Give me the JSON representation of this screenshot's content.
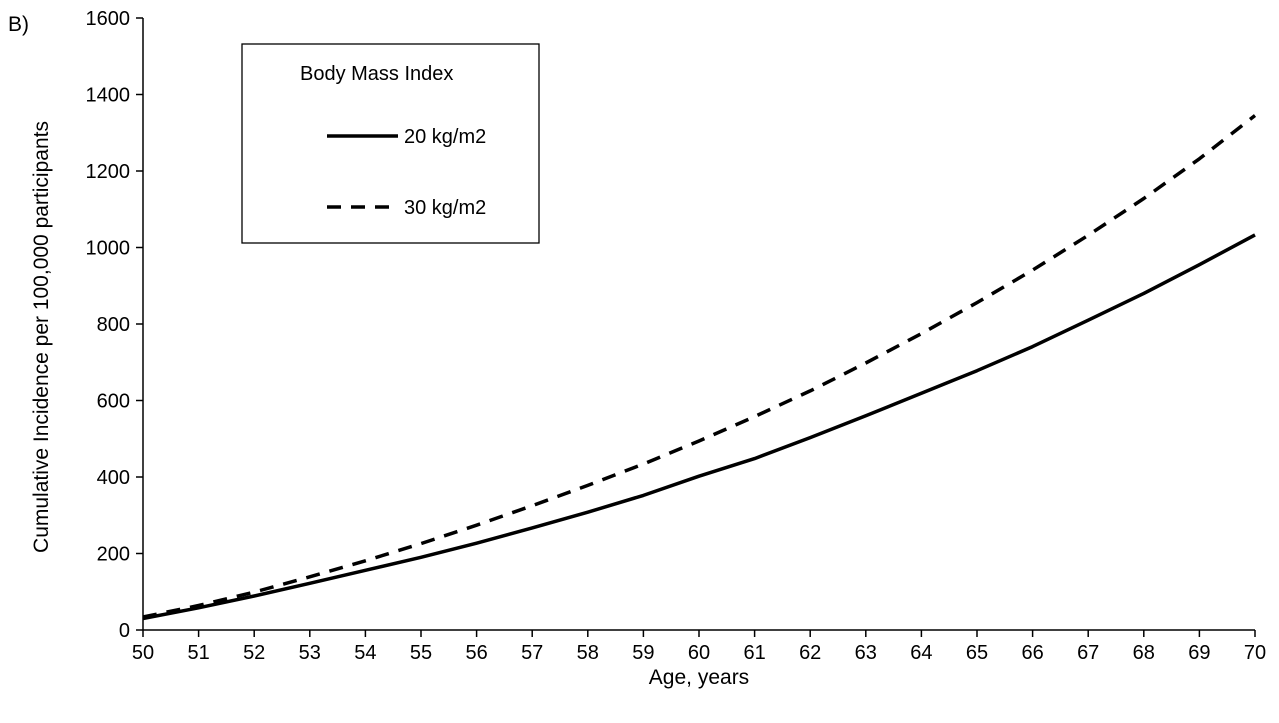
{
  "chart_data": {
    "type": "line",
    "panel_label": "B)",
    "title": "",
    "xlabel": "Age, years",
    "ylabel": "Cumulative Incidence per 100,000 participants",
    "xlim": [
      50,
      70
    ],
    "ylim": [
      0,
      1600
    ],
    "x_ticks": [
      50,
      51,
      52,
      53,
      54,
      55,
      56,
      57,
      58,
      59,
      60,
      61,
      62,
      63,
      64,
      65,
      66,
      67,
      68,
      69,
      70
    ],
    "y_ticks": [
      0,
      200,
      400,
      600,
      800,
      1000,
      1200,
      1400,
      1600
    ],
    "x_tick_labels": [
      "50",
      "51",
      "52",
      "53",
      "54",
      "55",
      "56",
      "57",
      "58",
      "59",
      "60",
      "61",
      "62",
      "63",
      "64",
      "65",
      "66",
      "67",
      "68",
      "69",
      "70"
    ],
    "y_tick_labels": [
      "0",
      "200",
      "400",
      "600",
      "800",
      "1000",
      "1200",
      "1400",
      "1600"
    ],
    "grid": false,
    "legend": {
      "title": "Body Mass Index",
      "placement": "top-left"
    },
    "x": [
      50,
      51,
      52,
      53,
      54,
      55,
      56,
      57,
      58,
      59,
      60,
      61,
      62,
      63,
      64,
      65,
      66,
      67,
      68,
      69,
      70
    ],
    "series": [
      {
        "name": "20 kg/m2",
        "style": "solid",
        "color": "#000000",
        "values": [
          30,
          58,
          89,
          122,
          156,
          190,
          227,
          267,
          308,
          352,
          402,
          448,
          503,
          560,
          619,
          678,
          741,
          810,
          880,
          955,
          1033
        ]
      },
      {
        "name": "30 kg/m2",
        "style": "dashed",
        "color": "#000000",
        "values": [
          34,
          64,
          99,
          139,
          181,
          226,
          274,
          325,
          378,
          434,
          494,
          558,
          625,
          698,
          775,
          856,
          941,
          1032,
          1128,
          1232,
          1345
        ]
      }
    ]
  }
}
